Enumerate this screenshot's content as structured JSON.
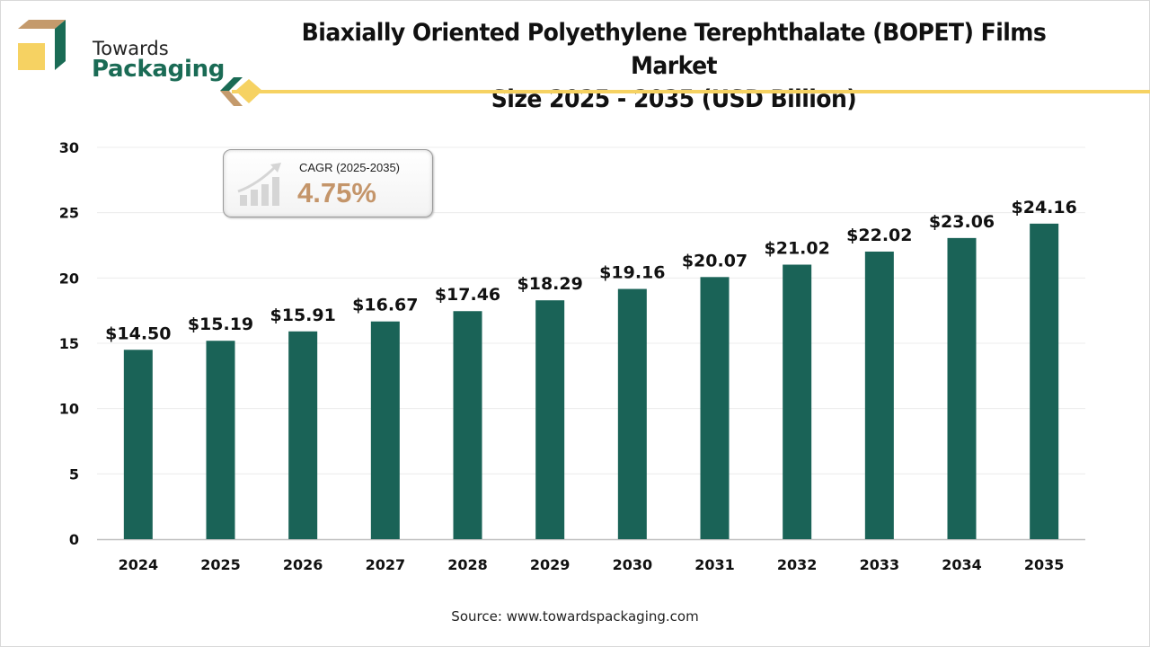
{
  "brand": {
    "line1": "Towards",
    "line2": "Packaging",
    "colors": {
      "green": "#1a6b55",
      "tan": "#c49a6c",
      "yellow": "#f6d262"
    }
  },
  "cagr": {
    "label": "CAGR (2025-2035)",
    "value": "4.75%",
    "icon": "growth-chart-icon"
  },
  "source": "Source: www.towardspackaging.com",
  "chart_data": {
    "type": "bar",
    "title": "Biaxially Oriented Polyethylene Terephthalate (BOPET) Films Market Size 2025 - 2035 (USD Billion)",
    "title_lines": [
      "Biaxially Oriented Polyethylene Terephthalate (BOPET) Films Market",
      "Size 2025 - 2035 (USD Billion)"
    ],
    "xlabel": "",
    "ylabel": "",
    "categories": [
      "2024",
      "2025",
      "2026",
      "2027",
      "2028",
      "2029",
      "2030",
      "2031",
      "2032",
      "2033",
      "2034",
      "2035"
    ],
    "values": [
      14.5,
      15.19,
      15.91,
      16.67,
      17.46,
      18.29,
      19.16,
      20.07,
      21.02,
      22.02,
      23.06,
      24.16
    ],
    "data_labels": [
      "$14.50",
      "$15.19",
      "$15.91",
      "$16.67",
      "$17.46",
      "$18.29",
      "$19.16",
      "$20.07",
      "$21.02",
      "$22.02",
      "$23.06",
      "$24.16"
    ],
    "ylim": [
      0,
      30
    ],
    "yticks": [
      0,
      5,
      10,
      15,
      20,
      25,
      30
    ],
    "grid": true,
    "legend": "none",
    "bar_color": "#1a6357"
  }
}
